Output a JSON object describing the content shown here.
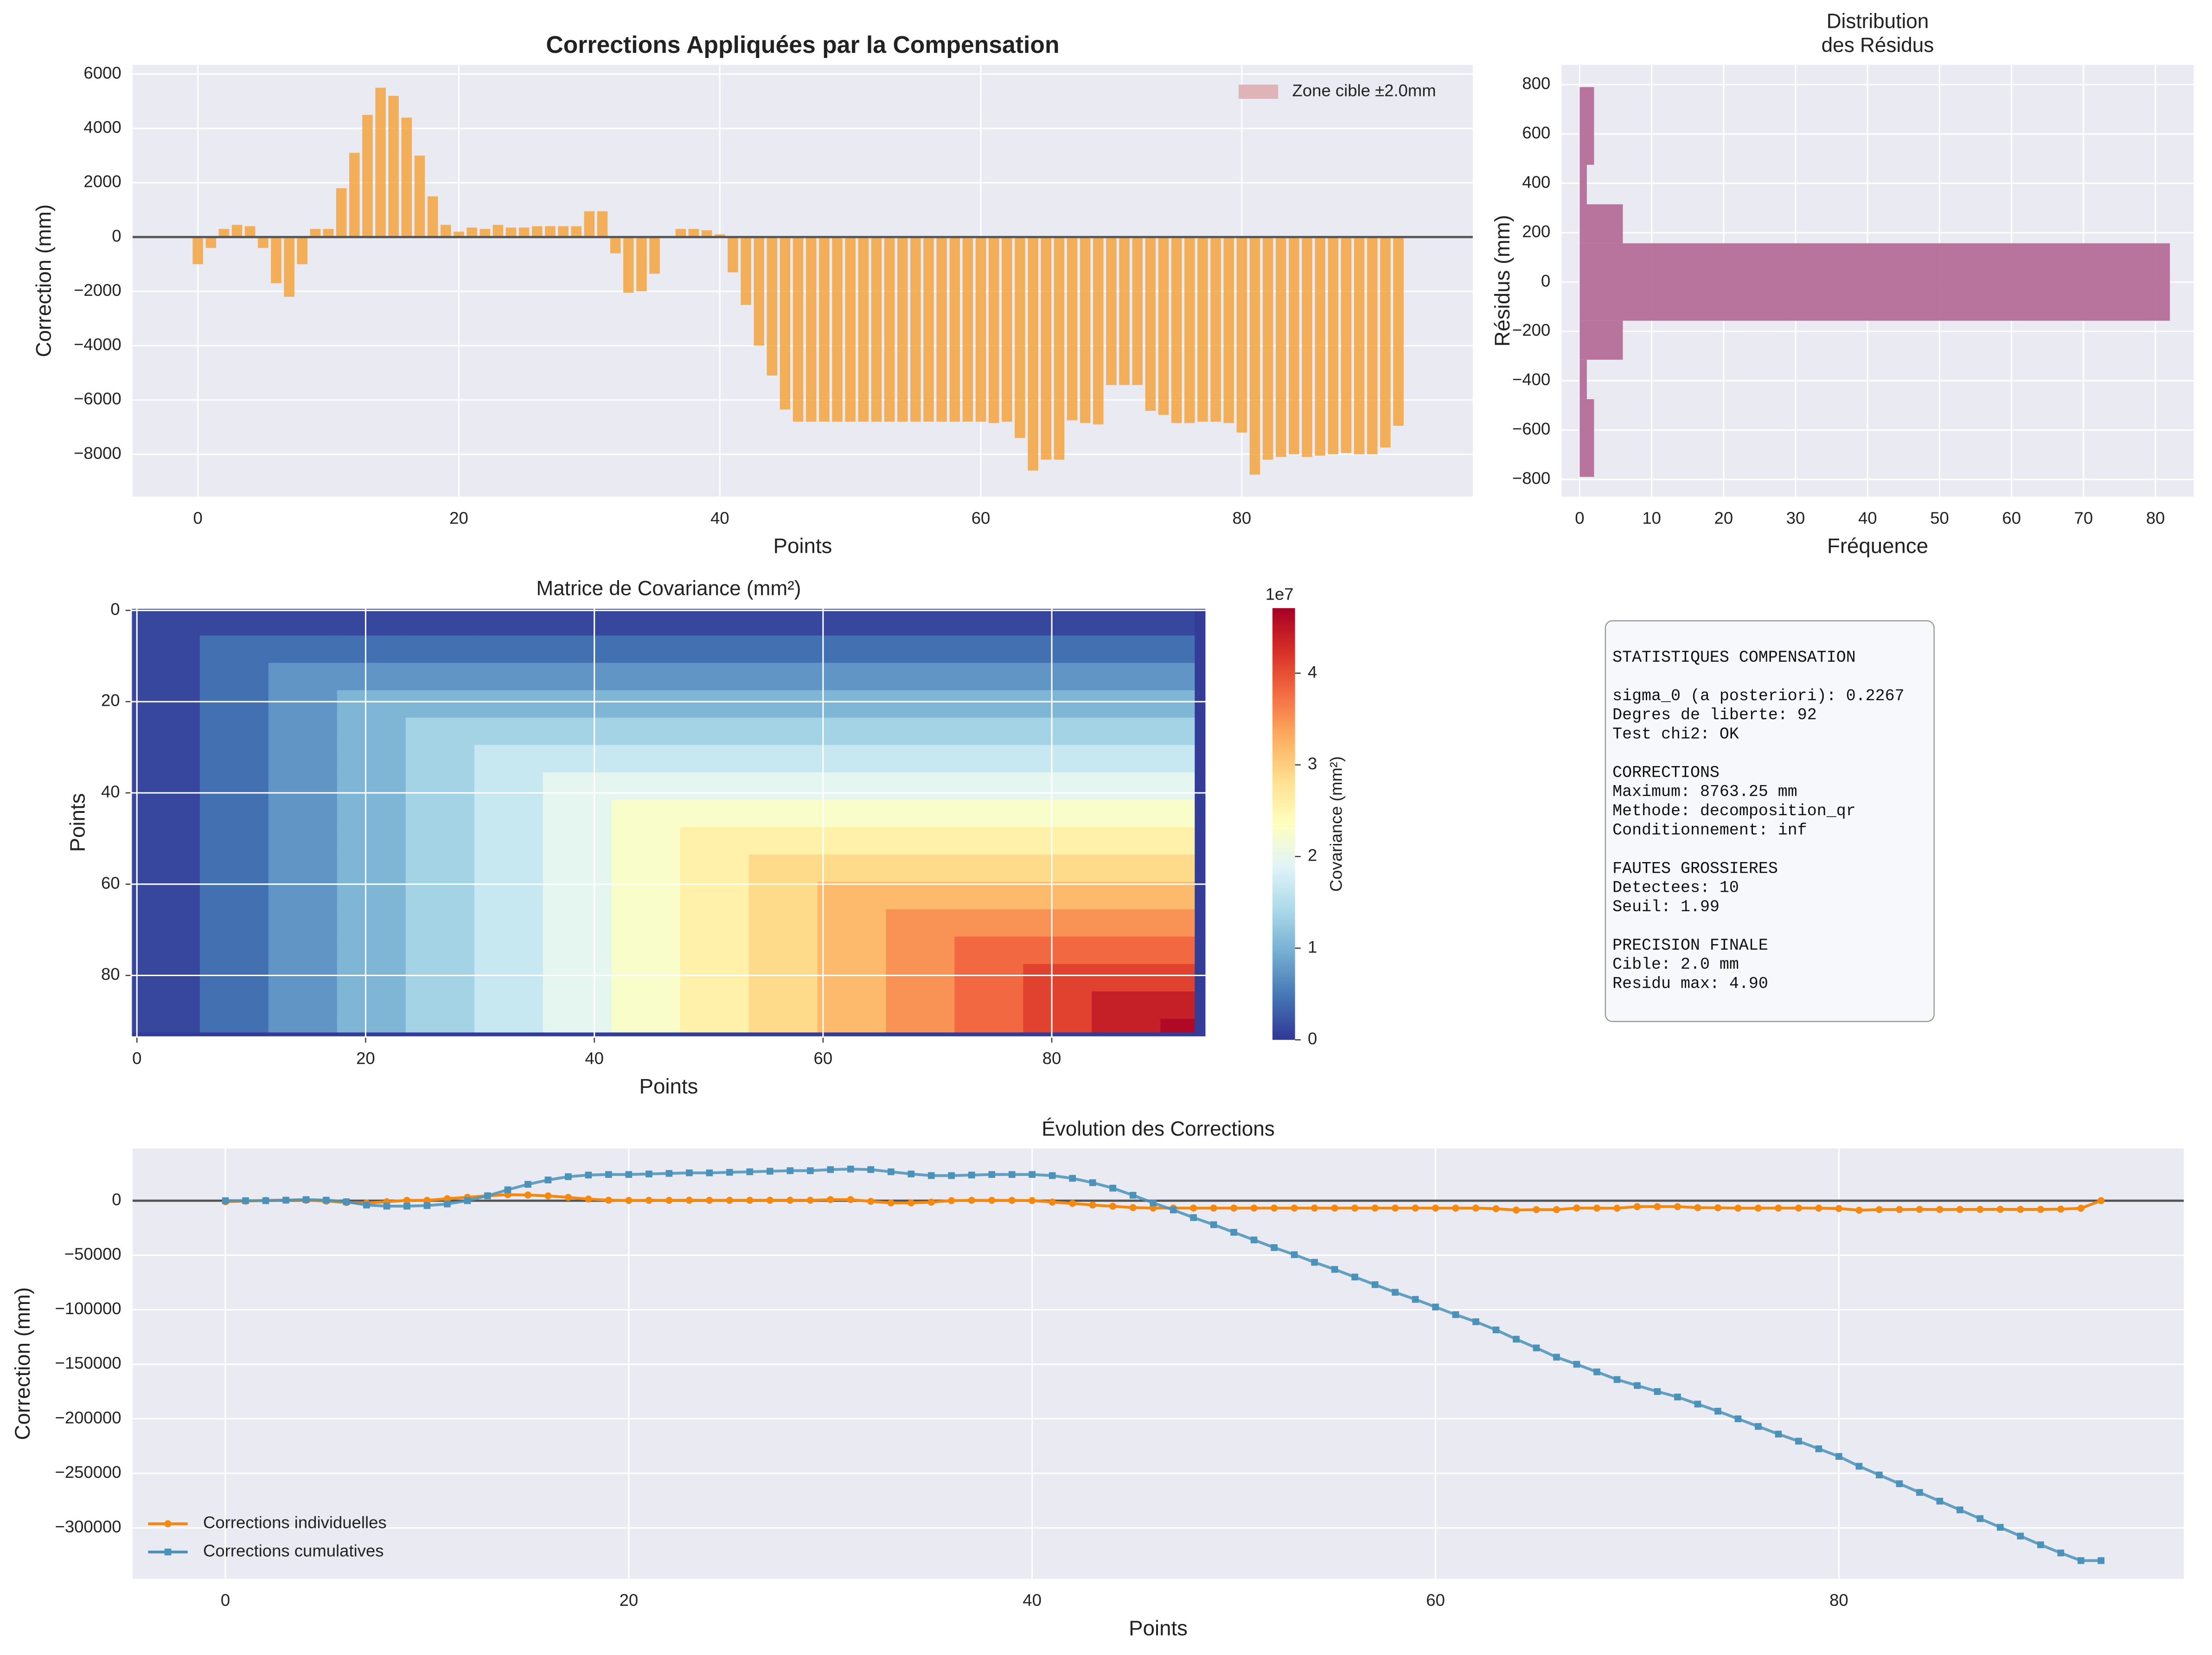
{
  "chart_data": [
    {
      "type": "bar",
      "title": "Corrections Appliquées par la Compensation",
      "xlabel": "Points",
      "ylabel": "Correction (mm)",
      "x": [
        0,
        1,
        2,
        3,
        4,
        5,
        6,
        7,
        8,
        9,
        10,
        11,
        12,
        13,
        14,
        15,
        16,
        17,
        18,
        19,
        20,
        21,
        22,
        23,
        24,
        25,
        26,
        27,
        28,
        29,
        30,
        31,
        32,
        33,
        34,
        35,
        36,
        37,
        38,
        39,
        40,
        41,
        42,
        43,
        44,
        45,
        46,
        47,
        48,
        49,
        50,
        51,
        52,
        53,
        54,
        55,
        56,
        57,
        58,
        59,
        60,
        61,
        62,
        63,
        64,
        65,
        66,
        67,
        68,
        69,
        70,
        71,
        72,
        73,
        74,
        75,
        76,
        77,
        78,
        79,
        80,
        81,
        82,
        83,
        84,
        85,
        86,
        87,
        88,
        89,
        90,
        91,
        92
      ],
      "values": [
        -1000,
        -400,
        300,
        450,
        400,
        -400,
        -1700,
        -2200,
        -1000,
        300,
        300,
        1800,
        3100,
        4500,
        5500,
        5200,
        4400,
        3000,
        1500,
        450,
        200,
        350,
        300,
        450,
        350,
        350,
        400,
        400,
        400,
        400,
        950,
        950,
        -600,
        -2050,
        -2000,
        -1350,
        0,
        300,
        300,
        250,
        100,
        -1300,
        -2500,
        -4000,
        -5100,
        -6350,
        -6800,
        -6800,
        -6800,
        -6800,
        -6800,
        -6800,
        -6800,
        -6800,
        -6800,
        -6800,
        -6800,
        -6800,
        -6800,
        -6800,
        -6800,
        -6850,
        -6800,
        -7400,
        -8600,
        -8200,
        -8200,
        -6750,
        -6850,
        -6900,
        -5450,
        -5450,
        -5450,
        -6400,
        -6550,
        -6850,
        -6850,
        -6800,
        -6800,
        -6850,
        -7200,
        -8750,
        -8200,
        -8100,
        -8000,
        -8100,
        -8050,
        -8000,
        -7950,
        -8000,
        -8000,
        -7750,
        -6950
      ],
      "color": "#f5a33f",
      "bar_width": 0.8,
      "background": "#eaeaf2",
      "grid": true,
      "hline": 0,
      "target_zone": [
        -2,
        2
      ],
      "legend": {
        "label": "Zone cible ±2.0mm",
        "color": "#dfb4b8",
        "position": "upper right"
      },
      "xlim": [
        -5,
        97.7
      ],
      "ylim": [
        -9560,
        6340
      ],
      "xticks": [
        0,
        20,
        40,
        60,
        80
      ],
      "yticks": [
        {
          "value": -8000,
          "label": "−8000"
        },
        {
          "value": -6000,
          "label": "−6000"
        },
        {
          "value": -4000,
          "label": "−4000"
        },
        {
          "value": -2000,
          "label": "−2000"
        },
        0,
        2000,
        4000,
        6000
      ]
    },
    {
      "type": "histogram",
      "orientation": "horizontal",
      "title": [
        "Distribution",
        "des Résidus"
      ],
      "xlabel": "Fréquence",
      "ylabel": "Résidus (mm)",
      "bins": [
        -790,
        -475,
        -315,
        -157,
        157,
        315,
        475,
        790
      ],
      "counts": [
        2,
        1,
        6,
        82,
        6,
        1,
        2
      ],
      "color": "#b56e97",
      "background": "#eaeaf2",
      "grid": true,
      "xlim": [
        -2.5,
        85.3
      ],
      "ylim": [
        -870,
        880
      ],
      "xticks": [
        0,
        10,
        20,
        30,
        40,
        50,
        60,
        70,
        80
      ],
      "yticks": [
        {
          "value": -800,
          "label": "−800"
        },
        {
          "value": -600,
          "label": "−600"
        },
        {
          "value": -400,
          "label": "−400"
        },
        {
          "value": -200,
          "label": "−200"
        },
        0,
        200,
        400,
        600,
        800
      ]
    },
    {
      "type": "heatmap",
      "title": "Matrice de Covariance (mm²)",
      "xlabel": "Points",
      "ylabel": "Points",
      "edges": [
        -0.5,
        5.5,
        11.5,
        17.5,
        23.5,
        29.5,
        35.5,
        41.5,
        47.5,
        53.5,
        59.5,
        65.5,
        71.5,
        77.5,
        83.5,
        89.5,
        92.5,
        93.5
      ],
      "values": [
        [
          0.13,
          0.13,
          0.13,
          0.13,
          0.13,
          0.13,
          0.13,
          0.13,
          0.13,
          0.13,
          0.13,
          0.13,
          0.13,
          0.13,
          0.13,
          0.13,
          0.05
        ],
        [
          0.13,
          0.43,
          0.43,
          0.43,
          0.43,
          0.43,
          0.43,
          0.43,
          0.43,
          0.43,
          0.43,
          0.43,
          0.43,
          0.43,
          0.43,
          0.43,
          0.05
        ],
        [
          0.13,
          0.43,
          0.74,
          0.74,
          0.74,
          0.74,
          0.74,
          0.74,
          0.74,
          0.74,
          0.74,
          0.74,
          0.74,
          0.74,
          0.74,
          0.74,
          0.05
        ],
        [
          0.13,
          0.43,
          0.74,
          1.04,
          1.04,
          1.04,
          1.04,
          1.04,
          1.04,
          1.04,
          1.04,
          1.04,
          1.04,
          1.04,
          1.04,
          1.04,
          0.05
        ],
        [
          0.13,
          0.43,
          0.74,
          1.04,
          1.35,
          1.35,
          1.35,
          1.35,
          1.35,
          1.35,
          1.35,
          1.35,
          1.35,
          1.35,
          1.35,
          1.35,
          0.05
        ],
        [
          0.13,
          0.43,
          0.74,
          1.04,
          1.35,
          1.66,
          1.66,
          1.66,
          1.66,
          1.66,
          1.66,
          1.66,
          1.66,
          1.66,
          1.66,
          1.66,
          0.05
        ],
        [
          0.13,
          0.43,
          0.74,
          1.04,
          1.35,
          1.66,
          1.96,
          1.96,
          1.96,
          1.96,
          1.96,
          1.96,
          1.96,
          1.96,
          1.96,
          1.96,
          0.05
        ],
        [
          0.13,
          0.43,
          0.74,
          1.04,
          1.35,
          1.66,
          1.96,
          2.27,
          2.27,
          2.27,
          2.27,
          2.27,
          2.27,
          2.27,
          2.27,
          2.27,
          0.05
        ],
        [
          0.13,
          0.43,
          0.74,
          1.04,
          1.35,
          1.66,
          1.96,
          2.27,
          2.57,
          2.57,
          2.57,
          2.57,
          2.57,
          2.57,
          2.57,
          2.57,
          0.05
        ],
        [
          0.13,
          0.43,
          0.74,
          1.04,
          1.35,
          1.66,
          1.96,
          2.27,
          2.57,
          2.88,
          2.88,
          2.88,
          2.88,
          2.88,
          2.88,
          2.88,
          0.05
        ],
        [
          0.13,
          0.43,
          0.74,
          1.04,
          1.35,
          1.66,
          1.96,
          2.27,
          2.57,
          2.88,
          3.19,
          3.19,
          3.19,
          3.19,
          3.19,
          3.19,
          0.05
        ],
        [
          0.13,
          0.43,
          0.74,
          1.04,
          1.35,
          1.66,
          1.96,
          2.27,
          2.57,
          2.88,
          3.19,
          3.49,
          3.49,
          3.49,
          3.49,
          3.49,
          0.05
        ],
        [
          0.13,
          0.43,
          0.74,
          1.04,
          1.35,
          1.66,
          1.96,
          2.27,
          2.57,
          2.88,
          3.19,
          3.49,
          3.8,
          3.8,
          3.8,
          3.8,
          0.05
        ],
        [
          0.13,
          0.43,
          0.74,
          1.04,
          1.35,
          1.66,
          1.96,
          2.27,
          2.57,
          2.88,
          3.19,
          3.49,
          3.8,
          4.1,
          4.1,
          4.1,
          0.05
        ],
        [
          0.13,
          0.43,
          0.74,
          1.04,
          1.35,
          1.66,
          1.96,
          2.27,
          2.57,
          2.88,
          3.19,
          3.49,
          3.8,
          4.1,
          4.41,
          4.41,
          0.05
        ],
        [
          0.13,
          0.43,
          0.74,
          1.04,
          1.35,
          1.66,
          1.96,
          2.27,
          2.57,
          2.88,
          3.19,
          3.49,
          3.8,
          4.1,
          4.41,
          4.62,
          0.05
        ],
        [
          0.05,
          0.05,
          0.05,
          0.05,
          0.05,
          0.05,
          0.05,
          0.05,
          0.05,
          0.05,
          0.05,
          0.05,
          0.05,
          0.05,
          0.05,
          0.05,
          0.05
        ]
      ],
      "colormap": [
        "#313695",
        "#4575b4",
        "#74add1",
        "#abd9e9",
        "#e0f3f8",
        "#ffffbf",
        "#fee090",
        "#fdae61",
        "#f46d43",
        "#d73027",
        "#a50026"
      ],
      "grid": true,
      "xlim": [
        -0.5,
        93.5
      ],
      "ylim": [
        93.5,
        -0.5
      ],
      "xticks": [
        0,
        20,
        40,
        60,
        80
      ],
      "yticks": [
        0,
        20,
        40,
        60,
        80
      ],
      "colorbar": {
        "label": "Covariance (mm²)",
        "offset_label": "1e7",
        "lim": [
          0,
          4.71
        ],
        "ticks": [
          0,
          1,
          2,
          3,
          4
        ]
      }
    },
    {
      "type": "line",
      "title": "Évolution des Corrections",
      "xlabel": "Points",
      "ylabel": "Correction (mm)",
      "x": [
        0,
        1,
        2,
        3,
        4,
        5,
        6,
        7,
        8,
        9,
        10,
        11,
        12,
        13,
        14,
        15,
        16,
        17,
        18,
        19,
        20,
        21,
        22,
        23,
        24,
        25,
        26,
        27,
        28,
        29,
        30,
        31,
        32,
        33,
        34,
        35,
        36,
        37,
        38,
        39,
        40,
        41,
        42,
        43,
        44,
        45,
        46,
        47,
        48,
        49,
        50,
        51,
        52,
        53,
        54,
        55,
        56,
        57,
        58,
        59,
        60,
        61,
        62,
        63,
        64,
        65,
        66,
        67,
        68,
        69,
        70,
        71,
        72,
        73,
        74,
        75,
        76,
        77,
        78,
        79,
        80,
        81,
        82,
        83,
        84,
        85,
        86,
        87,
        88,
        89,
        90,
        91,
        92,
        93
      ],
      "series": [
        {
          "name": "Corrections individuelles",
          "color": "#f5890f",
          "marker": "circle",
          "values": [
            -1000,
            -400,
            300,
            450,
            400,
            -400,
            -1700,
            -2200,
            -1000,
            300,
            300,
            1800,
            3100,
            4500,
            5500,
            5200,
            4400,
            3000,
            1500,
            450,
            200,
            350,
            300,
            450,
            350,
            350,
            400,
            400,
            400,
            400,
            950,
            950,
            -600,
            -2050,
            -2000,
            -1350,
            0,
            300,
            300,
            250,
            100,
            -1300,
            -2500,
            -4000,
            -5100,
            -6350,
            -6800,
            -6800,
            -6800,
            -6800,
            -6800,
            -6800,
            -6800,
            -6800,
            -6800,
            -6800,
            -6800,
            -6800,
            -6800,
            -6800,
            -6800,
            -6850,
            -6800,
            -7400,
            -8600,
            -8200,
            -8200,
            -6750,
            -6850,
            -6900,
            -5450,
            -5450,
            -5450,
            -6400,
            -6550,
            -6850,
            -6850,
            -6800,
            -6800,
            -6850,
            -7200,
            -8750,
            -8200,
            -8100,
            -8000,
            -8100,
            -8050,
            -8000,
            -7950,
            -8000,
            -8000,
            -7750,
            -6950,
            0
          ]
        },
        {
          "name": "Corrections cumulatives",
          "color": "#4a92b9",
          "marker": "square",
          "values": [
            0,
            0,
            0,
            500,
            1000,
            500,
            -1000,
            -4000,
            -5000,
            -5000,
            -4500,
            -3000,
            0,
            4500,
            10000,
            15000,
            19000,
            22000,
            23500,
            24000,
            24000,
            24500,
            25000,
            25500,
            25500,
            26000,
            26500,
            27000,
            27500,
            27500,
            28500,
            29000,
            28500,
            26500,
            24500,
            23000,
            23000,
            23500,
            24000,
            24000,
            24000,
            23000,
            20500,
            16500,
            11500,
            5000,
            -2000,
            -8500,
            -15500,
            -22000,
            -29000,
            -36000,
            -43000,
            -49500,
            -56500,
            -63000,
            -70000,
            -77000,
            -84000,
            -90500,
            -97500,
            -104500,
            -111000,
            -118500,
            -127000,
            -135000,
            -143500,
            -150000,
            -157000,
            -164000,
            -169500,
            -175000,
            -180000,
            -186500,
            -193000,
            -200000,
            -207000,
            -214000,
            -220500,
            -227500,
            -234500,
            -243500,
            -251500,
            -259500,
            -267500,
            -275500,
            -283500,
            -291500,
            -299500,
            -307500,
            -315500,
            -323000,
            -330000,
            -330000
          ]
        }
      ],
      "background": "#eaeaf2",
      "grid": true,
      "hline": 0,
      "legend_position": "lower left",
      "xlim": [
        -4.6,
        97.1
      ],
      "ylim": [
        -346700,
        47860
      ],
      "xticks": [
        0,
        20,
        40,
        60,
        80
      ],
      "yticks": [
        {
          "value": -300000,
          "label": "−300000"
        },
        {
          "value": -250000,
          "label": "−250000"
        },
        {
          "value": -200000,
          "label": "−200000"
        },
        {
          "value": -150000,
          "label": "−150000"
        },
        {
          "value": -100000,
          "label": "−100000"
        },
        {
          "value": -50000,
          "label": "−50000"
        },
        0
      ]
    }
  ],
  "stats_box": {
    "title": "STATISTIQUES COMPENSATION",
    "groups": [
      {
        "lines": [
          "sigma_0 (a posteriori): 0.2267",
          "Degres de liberte: 92",
          "Test chi2: OK"
        ]
      },
      {
        "heading": "CORRECTIONS",
        "lines": [
          "Maximum: 8763.25 mm",
          "Methode: decomposition_qr",
          "Conditionnement: inf"
        ]
      },
      {
        "heading": "FAUTES GROSSIERES",
        "lines": [
          "Detectees: 10",
          "Seuil: 1.99"
        ]
      },
      {
        "heading": "PRECISION FINALE",
        "lines": [
          "Cible: 2.0 mm",
          "Residu max: 4.90"
        ]
      }
    ]
  }
}
